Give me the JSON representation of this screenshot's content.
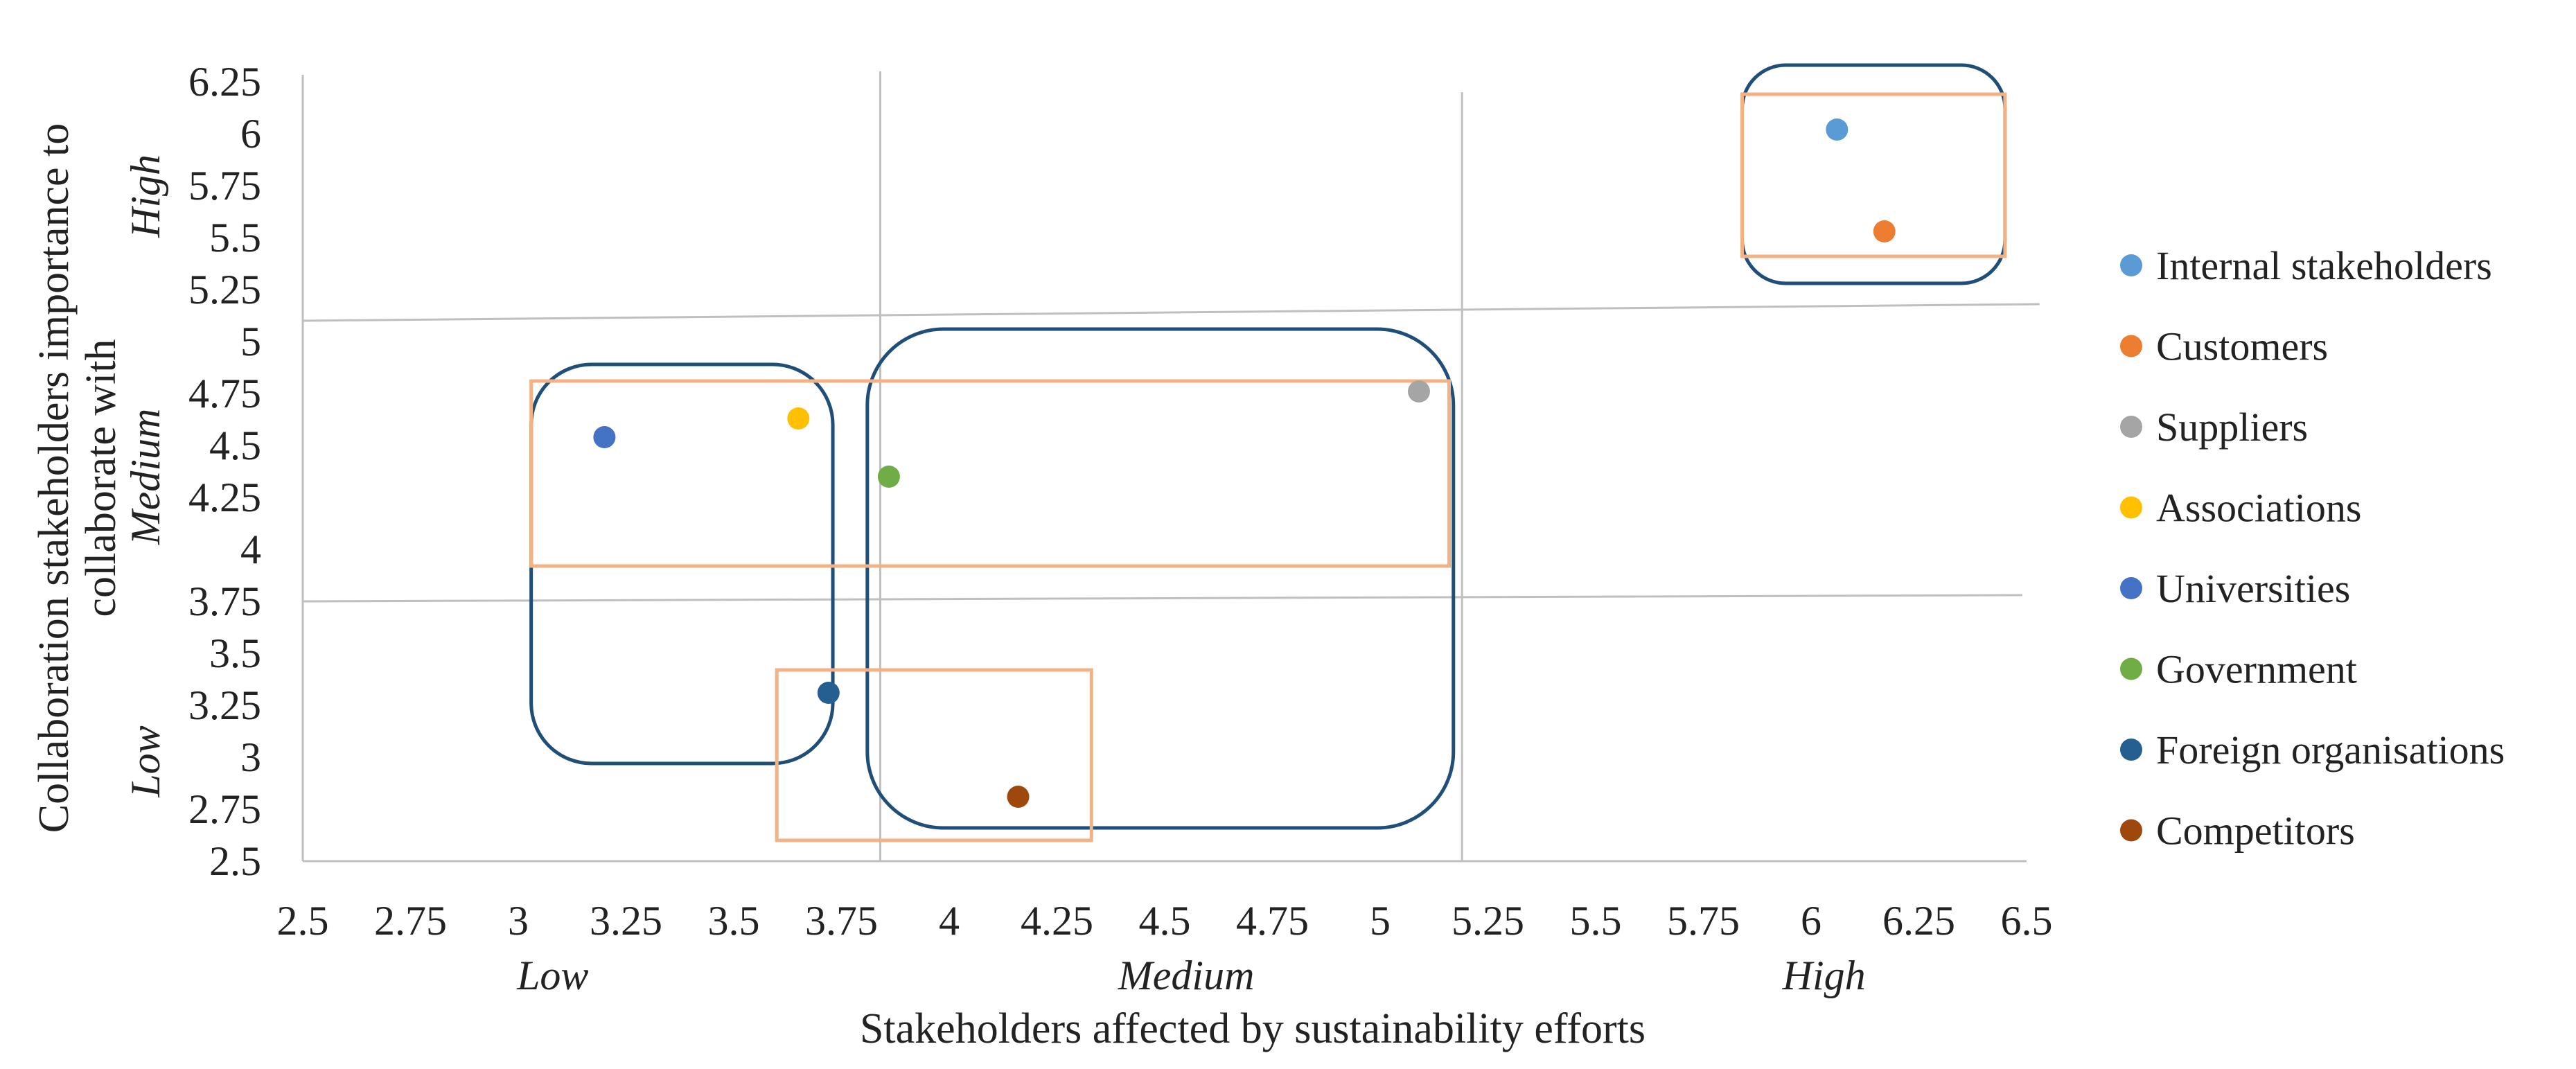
{
  "chart_data": {
    "type": "scatter",
    "title": "",
    "xlabel": "Stakeholders affected by sustainability efforts",
    "ylabel_lines": [
      "Collaboration stakeholders importance to",
      "collaborate with"
    ],
    "xlim": [
      2.5,
      6.5
    ],
    "ylim": [
      2.5,
      6.25
    ],
    "x_ticks": [
      "2.5",
      "2.75",
      "3",
      "3.25",
      "3.5",
      "3.75",
      "4",
      "4.25",
      "4.5",
      "4.75",
      "5",
      "5.25",
      "5.5",
      "5.75",
      "6",
      "6.25",
      "6.5"
    ],
    "y_ticks": [
      "2.5",
      "2.75",
      "3",
      "3.25",
      "3.5",
      "3.75",
      "4",
      "4.25",
      "4.5",
      "4.75",
      "5",
      "5.25",
      "5.5",
      "5.75",
      "6",
      "6.25"
    ],
    "x_levels": [
      {
        "label": "Low",
        "x": 3.08
      },
      {
        "label": "Medium",
        "x": 4.55
      },
      {
        "label": "High",
        "x": 6.03
      }
    ],
    "y_levels": [
      {
        "label": "High",
        "y": 5.7
      },
      {
        "label": "Medium",
        "y": 4.35
      },
      {
        "label": "Low",
        "y": 2.98
      }
    ],
    "series": [
      {
        "name": "Internal stakeholders",
        "color": "#5B9BD5",
        "x": 6.06,
        "y": 6.02
      },
      {
        "name": "Customers",
        "color": "#ED7D31",
        "x": 6.17,
        "y": 5.53
      },
      {
        "name": "Suppliers",
        "color": "#A5A5A5",
        "x": 5.09,
        "y": 4.76
      },
      {
        "name": "Associations",
        "color": "#FFC000",
        "x": 3.65,
        "y": 4.63
      },
      {
        "name": "Universities",
        "color": "#4472C4",
        "x": 3.2,
        "y": 4.54
      },
      {
        "name": "Government",
        "color": "#70AD47",
        "x": 3.86,
        "y": 4.35
      },
      {
        "name": "Foreign organisations",
        "color": "#255E91",
        "x": 3.72,
        "y": 3.31
      },
      {
        "name": "Competitors",
        "color": "#9E480E",
        "x": 4.16,
        "y": 2.81
      }
    ],
    "grid_lines": [
      {
        "orientation": "vertical",
        "from": [
          3.84,
          6.3
        ],
        "to": [
          3.84,
          2.5
        ]
      },
      {
        "orientation": "vertical",
        "from": [
          5.19,
          6.2
        ],
        "to": [
          5.19,
          2.5
        ]
      },
      {
        "orientation": "horizontal",
        "from": [
          2.5,
          5.1
        ],
        "to": [
          6.53,
          5.18
        ]
      },
      {
        "orientation": "horizontal",
        "from": [
          2.5,
          3.75
        ],
        "to": [
          6.49,
          3.78
        ]
      }
    ],
    "cluster_boxes": [
      {
        "group": "high-high",
        "x0": 5.84,
        "x1": 6.45,
        "y0": 5.28,
        "y1": 6.33,
        "rounded": true,
        "color": "#1F4E79"
      },
      {
        "group": "low",
        "x0": 3.03,
        "x1": 3.73,
        "y0": 2.97,
        "y1": 4.89,
        "rounded": true,
        "color": "#1F4E79"
      },
      {
        "group": "medium",
        "x0": 3.81,
        "x1": 5.17,
        "y0": 2.66,
        "y1": 5.06,
        "rounded": true,
        "color": "#1F4E79"
      },
      {
        "group": "high-high",
        "x0": 5.84,
        "x1": 6.45,
        "y0": 5.41,
        "y1": 6.19,
        "rounded": false,
        "color": "#F4B183"
      },
      {
        "group": "medium-y",
        "x0": 3.03,
        "x1": 5.16,
        "y0": 3.92,
        "y1": 4.81,
        "rounded": false,
        "color": "#F4B183"
      },
      {
        "group": "competitors",
        "x0": 3.6,
        "x1": 4.33,
        "y0": 2.6,
        "y1": 3.42,
        "rounded": false,
        "color": "#F4B183"
      }
    ],
    "legend_position": "right"
  }
}
